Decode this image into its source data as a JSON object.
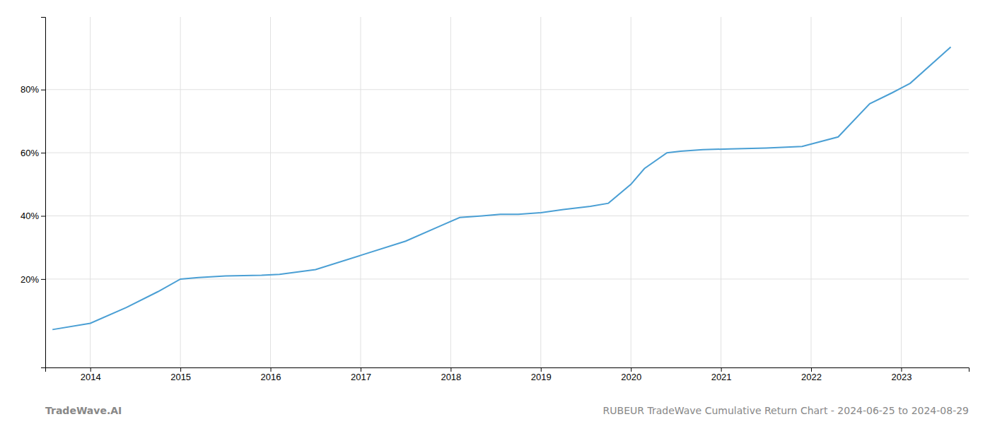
{
  "chart_data": {
    "type": "line",
    "x": [
      2013.58,
      2014.0,
      2014.4,
      2014.75,
      2015.0,
      2015.2,
      2015.5,
      2015.9,
      2016.1,
      2016.5,
      2017.0,
      2017.5,
      2017.9,
      2018.1,
      2018.35,
      2018.55,
      2018.75,
      2019.0,
      2019.25,
      2019.55,
      2019.75,
      2020.0,
      2020.15,
      2020.4,
      2020.55,
      2020.8,
      2021.1,
      2021.5,
      2021.9,
      2022.3,
      2022.65,
      2022.9,
      2023.1,
      2023.55
    ],
    "values": [
      4.0,
      6.0,
      11.0,
      16.0,
      20.0,
      20.5,
      21.0,
      21.2,
      21.5,
      23.0,
      27.5,
      32.0,
      37.0,
      39.5,
      40.0,
      40.5,
      40.5,
      41.0,
      42.0,
      43.0,
      44.0,
      50.0,
      55.0,
      60.0,
      60.5,
      61.0,
      61.2,
      61.5,
      62.0,
      65.0,
      75.5,
      79.0,
      82.0,
      93.5
    ],
    "color": "#4a9fd4",
    "xlim": [
      2013.5,
      2023.75
    ],
    "ylim": [
      -8,
      103
    ],
    "xticks": [
      2014,
      2015,
      2016,
      2017,
      2018,
      2019,
      2020,
      2021,
      2022,
      2023
    ],
    "yticks": [
      {
        "value": 20,
        "label": "20%"
      },
      {
        "value": 40,
        "label": "40%"
      },
      {
        "value": 60,
        "label": "60%"
      },
      {
        "value": 80,
        "label": "80%"
      }
    ],
    "grid": true,
    "annotations": [
      "TradeWave.AI",
      "RUBEUR TradeWave Cumulative Return Chart - 2024-06-25 to 2024-08-29"
    ]
  }
}
